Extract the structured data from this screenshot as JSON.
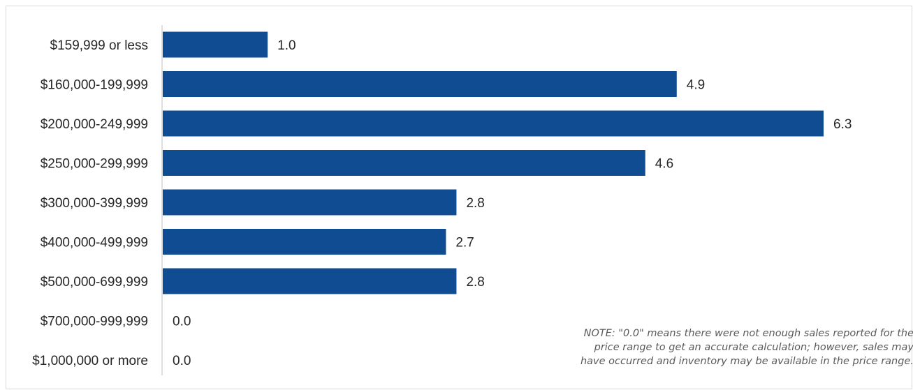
{
  "chart_data": {
    "type": "bar",
    "orientation": "horizontal",
    "categories": [
      "$159,999 or less",
      "$160,000-199,999",
      "$200,000-249,999",
      "$250,000-299,999",
      "$300,000-399,999",
      "$400,000-499,999",
      "$500,000-699,999",
      "$700,000-999,999",
      "$1,000,000 or more"
    ],
    "values": [
      1.0,
      4.9,
      6.3,
      4.6,
      2.8,
      2.7,
      2.8,
      0.0,
      0.0
    ],
    "value_labels": [
      "1.0",
      "4.9",
      "6.3",
      "4.6",
      "2.8",
      "2.7",
      "2.8",
      "0.0",
      "0.0"
    ],
    "title": "",
    "xlabel": "",
    "ylabel": "",
    "xlim": [
      0,
      6.3
    ],
    "grid": false,
    "bar_color": "#0f4c92",
    "axis_color": "#bfbfbf",
    "note": "NOTE: \"0.0\" means there were not enough sales reported for the\nprice range to get an accurate calculation;  however, sales may\nhave occurred and inventory may be available in the price range."
  }
}
